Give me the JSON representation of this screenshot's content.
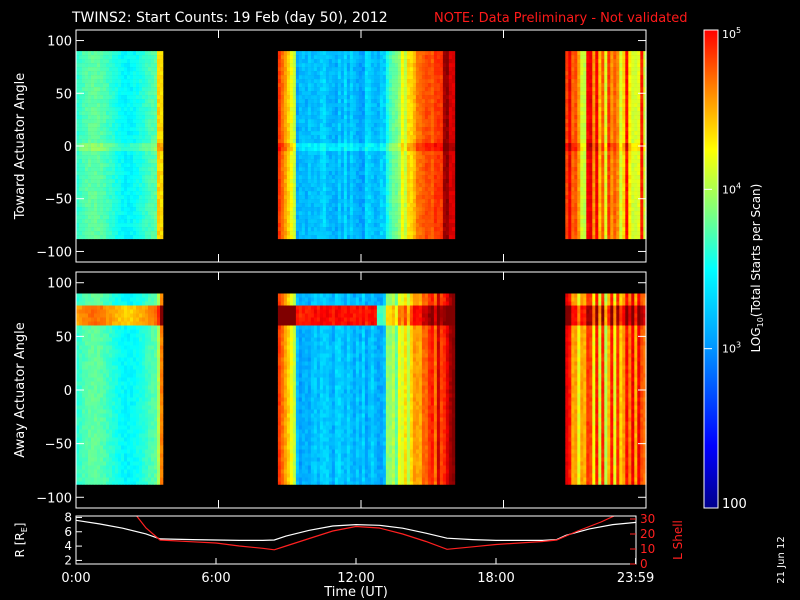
{
  "title": {
    "main": "TWINS2: Start Counts: 19 Feb (day  50), 2012",
    "note": "NOTE: Data Preliminary - Not validated"
  },
  "stamp": "21 Jun 12",
  "colors": {
    "note": "#ff1a1a",
    "background": "#000000",
    "axes": "#ffffff",
    "r_line": "#ffffff",
    "lshell_line": "#ff2020"
  },
  "chart_data": [
    {
      "type": "heatmap",
      "ylabel": "Toward Actuator Angle",
      "ylim": [
        -110,
        110
      ],
      "yticks": [
        100,
        50,
        0,
        -50,
        -100
      ],
      "ytick_labels": [
        "100",
        "50",
        "0",
        "−50",
        "−100"
      ],
      "xlim_hours": [
        0,
        24
      ],
      "angle_range": [
        -88,
        90
      ],
      "data_intervals_hours": [
        [
          0,
          3.6
        ],
        [
          8.5,
          15.9
        ],
        [
          20.6,
          24
        ]
      ]
    },
    {
      "type": "heatmap",
      "ylabel": "Away Actuator Angle",
      "ylim": [
        -110,
        110
      ],
      "yticks": [
        100,
        50,
        0,
        -50,
        -100
      ],
      "ytick_labels": [
        "100",
        "50",
        "0",
        "−50",
        "−100"
      ],
      "xlim_hours": [
        0,
        24
      ],
      "angle_range": [
        -88,
        90
      ],
      "data_intervals_hours": [
        [
          0,
          3.6
        ],
        [
          8.5,
          15.9
        ],
        [
          20.6,
          24
        ]
      ]
    },
    {
      "type": "line",
      "xlabel": "Time (UT)",
      "xlim_hours": [
        0,
        24
      ],
      "xticks_hours": [
        0,
        6,
        12,
        18,
        23.983
      ],
      "xtick_labels": [
        "0:00",
        "6:00",
        "12:00",
        "18:00",
        "23:59"
      ],
      "left_axis": {
        "label_main": "R [R",
        "label_sub": "E",
        "label_tail": "]",
        "ylim": [
          1.5,
          8.2
        ],
        "yticks": [
          2,
          4,
          6,
          8
        ]
      },
      "right_axis": {
        "label": "L Shell",
        "ylim": [
          0,
          32
        ],
        "yticks": [
          0,
          10,
          20,
          30
        ]
      },
      "series": [
        {
          "axis": "left",
          "x": [
            0,
            1,
            2,
            3,
            3.6,
            5,
            6,
            7,
            8,
            8.5,
            9,
            10,
            11,
            12,
            13,
            14,
            15,
            15.9,
            17,
            18,
            19,
            20,
            20.6,
            21,
            22,
            23,
            24
          ],
          "y": [
            7.6,
            7.1,
            6.5,
            5.7,
            5.0,
            4.9,
            4.85,
            4.8,
            4.8,
            4.85,
            5.4,
            6.2,
            6.8,
            7.0,
            6.9,
            6.5,
            5.8,
            5.1,
            4.9,
            4.8,
            4.8,
            4.8,
            4.9,
            5.5,
            6.4,
            7.0,
            7.3
          ]
        },
        {
          "axis": "right",
          "x": [
            2.6,
            3.0,
            3.6,
            5,
            6,
            7,
            8,
            8.5,
            9,
            10,
            11,
            12,
            13,
            14,
            15,
            15.9,
            17,
            18,
            19,
            20,
            20.6,
            21.5,
            22.5,
            23.2
          ],
          "y": [
            32,
            24,
            16,
            14.8,
            14,
            12,
            10.5,
            9.5,
            12,
            17,
            22,
            25,
            24,
            20,
            15,
            9.8,
            11.5,
            13,
            14,
            15,
            16,
            22,
            28,
            33
          ]
        }
      ]
    }
  ],
  "colorbar": {
    "label_main": "LOG",
    "label_sub": "10",
    "label_tail": "(Total Starts per Scan)",
    "ticks": [
      {
        "value": 100,
        "label": "100"
      },
      {
        "value": 1000,
        "label": "10",
        "exp": "3"
      },
      {
        "value": 10000,
        "label": "10",
        "exp": "4"
      },
      {
        "value": 100000,
        "label": "10",
        "exp": "5"
      }
    ],
    "range": [
      100,
      100000
    ]
  }
}
